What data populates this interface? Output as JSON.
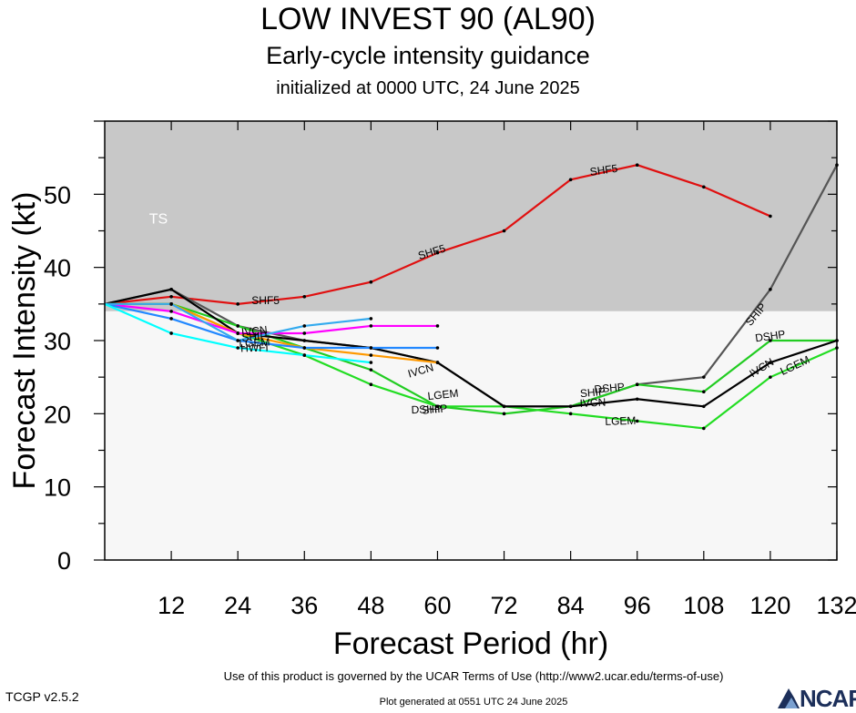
{
  "title": "LOW INVEST 90 (AL90)",
  "subtitle": "Early-cycle intensity guidance",
  "initialized": "initialized at 0000 UTC, 24 June 2025",
  "footer": {
    "terms": "Use of this product is governed by the UCAR Terms of Use (http://www2.ucar.edu/terms-of-use)",
    "version": "TCGP v2.5.2",
    "generated": "Plot generated at 0551 UTC   24 June 2025",
    "logo_text": "NCAR"
  },
  "chart_data": {
    "type": "line",
    "xlabel": "Forecast Period (hr)",
    "ylabel": "Forecast Intensity (kt)",
    "xlim": [
      0,
      132
    ],
    "ylim": [
      0,
      60
    ],
    "xticks": [
      12,
      24,
      36,
      48,
      60,
      72,
      84,
      96,
      108,
      120,
      132
    ],
    "yticks": [
      0,
      10,
      20,
      30,
      40,
      50
    ],
    "bands": [
      {
        "label": "TS",
        "from": 34,
        "to": 60,
        "color": "#c8c8c8"
      },
      {
        "label": "",
        "from": 0,
        "to": 34,
        "color": "#f7f7f7"
      }
    ],
    "series": [
      {
        "name": "SHF5",
        "color": "#e01010",
        "x": [
          0,
          12,
          24,
          36,
          48,
          60,
          72,
          84,
          96,
          108,
          120
        ],
        "y": [
          35,
          36,
          35,
          36,
          38,
          42,
          45,
          52,
          54,
          51,
          47
        ]
      },
      {
        "name": "SHIP",
        "color": "#555555",
        "x": [
          0,
          12,
          24,
          36,
          48,
          60,
          72,
          84,
          96,
          108,
          120,
          132
        ],
        "y": [
          35,
          37,
          32,
          30,
          29,
          27,
          21,
          21,
          24,
          25,
          37,
          54
        ]
      },
      {
        "name": "DSHP",
        "color": "#22cc22",
        "x": [
          0,
          12,
          24,
          36,
          48,
          60,
          72,
          84,
          96,
          108,
          120,
          132
        ],
        "y": [
          35,
          35,
          32,
          29,
          26,
          21,
          20,
          21,
          24,
          23,
          30,
          30
        ]
      },
      {
        "name": "LGEM",
        "color": "#22dd22",
        "x": [
          0,
          12,
          24,
          36,
          48,
          60,
          72,
          84,
          96,
          108,
          120,
          132
        ],
        "y": [
          35,
          35,
          31,
          28,
          24,
          21,
          21,
          20,
          19,
          18,
          25,
          29
        ]
      },
      {
        "name": "IVCN",
        "color": "#000000",
        "x": [
          0,
          12,
          24,
          36,
          48,
          60,
          72,
          84,
          96,
          108,
          120,
          132
        ],
        "y": [
          35,
          37,
          31,
          30,
          29,
          27,
          21,
          21,
          22,
          21,
          27,
          30
        ]
      },
      {
        "name": "",
        "color": "#ff9900",
        "x": [
          0,
          12,
          24,
          36,
          48,
          60
        ],
        "y": [
          35,
          35,
          31,
          29,
          28,
          27
        ]
      },
      {
        "name": "",
        "color": "#ff00ff",
        "x": [
          0,
          12,
          24,
          36,
          48,
          60
        ],
        "y": [
          35,
          34,
          31,
          31,
          32,
          32
        ]
      },
      {
        "name": "",
        "color": "#2288ff",
        "x": [
          0,
          12,
          24,
          36,
          48,
          60
        ],
        "y": [
          35,
          33,
          30,
          29,
          29,
          29
        ]
      },
      {
        "name": "",
        "color": "#33aaee",
        "x": [
          0,
          12,
          24,
          36,
          48
        ],
        "y": [
          35,
          35,
          30,
          32,
          33
        ]
      },
      {
        "name": "HWFI",
        "color": "#00ffff",
        "x": [
          0,
          12,
          24,
          36,
          48
        ],
        "y": [
          35,
          31,
          29,
          28,
          27
        ]
      }
    ],
    "annotations": [
      {
        "text": "SHF5",
        "x": 29,
        "y": 35.4,
        "angle": 0
      },
      {
        "text": "SHF5",
        "x": 59,
        "y": 42,
        "angle": -17
      },
      {
        "text": "SHF5",
        "x": 90,
        "y": 53.2,
        "angle": -8
      },
      {
        "text": "SHIP",
        "x": 117.5,
        "y": 33.5,
        "angle": -50
      },
      {
        "text": "DSHP",
        "x": 91,
        "y": 23.4,
        "angle": -5
      },
      {
        "text": "SHIP",
        "x": 88,
        "y": 22.8,
        "angle": -5
      },
      {
        "text": "DSHP",
        "x": 120,
        "y": 30.5,
        "angle": -8
      },
      {
        "text": "DSHP",
        "x": 58,
        "y": 20.5,
        "angle": -2
      },
      {
        "text": "SHIP",
        "x": 59.5,
        "y": 20.5,
        "angle": -5
      },
      {
        "text": "LGEM",
        "x": 61,
        "y": 22.5,
        "angle": -6
      },
      {
        "text": "LGEM",
        "x": 93,
        "y": 18.9,
        "angle": -2
      },
      {
        "text": "LGEM",
        "x": 124.5,
        "y": 26.5,
        "angle": -25
      },
      {
        "text": "IVCN",
        "x": 57,
        "y": 25.8,
        "angle": -16
      },
      {
        "text": "IVCN",
        "x": 88,
        "y": 21.4,
        "angle": -3
      },
      {
        "text": "IVCN",
        "x": 118.5,
        "y": 26.2,
        "angle": -32
      },
      {
        "text": "HWFI",
        "x": 27,
        "y": 28.9,
        "angle": -2
      },
      {
        "text": "IVCN",
        "x": 27,
        "y": 31.2,
        "angle": -6
      },
      {
        "text": "SHIP",
        "x": 27,
        "y": 30.4,
        "angle": -3
      },
      {
        "text": "LGEM",
        "x": 27,
        "y": 29.6,
        "angle": -3
      },
      {
        "text": "TS",
        "x": 8,
        "y": 46.5,
        "angle": 0
      }
    ]
  }
}
